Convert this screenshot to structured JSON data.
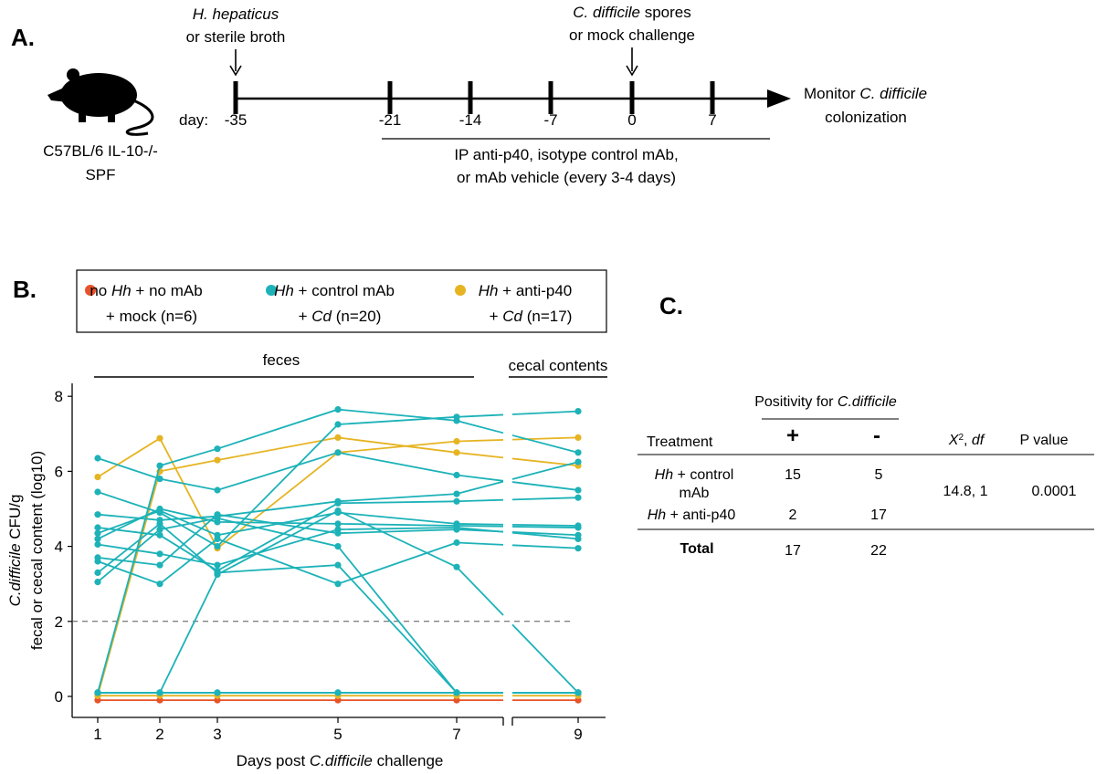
{
  "panel_a": {
    "label": "A.",
    "mouse": {
      "line1": "C57BL/6 IL-10-/-",
      "line2": "SPF"
    },
    "inoc": {
      "italic": "H. hepaticus",
      "line2": "or sterile broth"
    },
    "challenge": {
      "italic": "C. difficile",
      "rest": " spores",
      "line2": "or mock challenge"
    },
    "day_prefix": "day:",
    "days": [
      "-35",
      "-21",
      "-14",
      "-7",
      "0",
      "7"
    ],
    "monitor": {
      "pre": "Monitor ",
      "italic": "C. difficile",
      "line2": "colonization"
    },
    "treatment": {
      "line1": "IP anti-p40, isotype control mAb,",
      "line2": "or mAb vehicle (every 3-4 days)"
    }
  },
  "panel_b": {
    "label": "B.",
    "legend": [
      {
        "color": "#e8522a",
        "l1": [
          {
            "t": "no "
          },
          {
            "t": "Hh",
            "i": true
          },
          {
            "t": " + no mAb"
          }
        ],
        "l2": [
          {
            "t": "+ mock (n=6)"
          }
        ]
      },
      {
        "color": "#1cb2b8",
        "l1": [
          {
            "t": "Hh",
            "i": true
          },
          {
            "t": " + control mAb"
          }
        ],
        "l2": [
          {
            "t": "+ "
          },
          {
            "t": "Cd",
            "i": true
          },
          {
            "t": " (n=20)"
          }
        ]
      },
      {
        "color": "#e6b423",
        "l1": [
          {
            "t": "Hh",
            "i": true
          },
          {
            "t": " + anti-p40"
          }
        ],
        "l2": [
          {
            "t": "+ "
          },
          {
            "t": "Cd",
            "i": true
          },
          {
            "t": " (n=17)"
          }
        ]
      }
    ],
    "feces_label": "feces",
    "cecal_label": "cecal contents",
    "ylabel_line1": [
      {
        "t": "C.difficile",
        "i": true
      },
      {
        "t": " CFU/g"
      }
    ],
    "ylabel_line2": "fecal or cecal content (log10)",
    "xlabel": [
      {
        "t": "Days post "
      },
      {
        "t": "C.difficile",
        "i": true
      },
      {
        "t": " challenge"
      }
    ],
    "yticks": [
      "0",
      "2",
      "4",
      "6",
      "8"
    ],
    "xticks": [
      "1",
      "2",
      "3",
      "5",
      "7",
      "9"
    ]
  },
  "panel_c": {
    "label": "C.",
    "positivity": [
      {
        "t": "Positivity for "
      },
      {
        "t": "C.difficile",
        "i": true
      }
    ],
    "col_plus": "+",
    "col_minus": "-",
    "treatment_header": "Treatment",
    "chi_header": [
      {
        "t": "X",
        "i": true
      },
      {
        "t": "2",
        "sup": true
      },
      {
        "t": ", "
      },
      {
        "t": "df",
        "i": true
      }
    ],
    "p_header": "P value",
    "row1": {
      "name_l1": [
        {
          "t": "Hh",
          "i": true
        },
        {
          "t": " + control"
        }
      ],
      "name_l2": "mAb",
      "plus": "15",
      "minus": "5"
    },
    "row2": {
      "name": [
        {
          "t": "Hh",
          "i": true
        },
        {
          "t": " + anti-p40"
        }
      ],
      "plus": "2",
      "minus": "17"
    },
    "total": {
      "label": "Total",
      "plus": "17",
      "minus": "22"
    },
    "chi_value": "14.8, 1",
    "p_value": "0.0001"
  },
  "chart_data": {
    "type": "line",
    "x": [
      1,
      2,
      3,
      5,
      7,
      9
    ],
    "xlabel": "Days post C.difficile challenge",
    "ylabel": "C.difficile CFU/g fecal or cecal content (log10)",
    "ylim": [
      0,
      8
    ],
    "detection_limit": 2,
    "axis_break_between": [
      7,
      9
    ],
    "grid": false,
    "legend_position": "top",
    "series": [
      {
        "name": "no Hh + no mAb + mock (n=6)",
        "color": "#e8522a",
        "lines": [
          [
            -0.1,
            -0.1,
            -0.1,
            -0.1,
            -0.1,
            -0.1
          ]
        ]
      },
      {
        "name": "Hh + anti-p40 + Cd (n=17)",
        "color": "#e6b423",
        "lines": [
          [
            5.85,
            6.88,
            3.95,
            6.5,
            6.8,
            6.9
          ],
          [
            0.02,
            6.0,
            6.3,
            6.9,
            6.5,
            6.15
          ],
          [
            0.02,
            0.02,
            0.02,
            0.02,
            0.02,
            0.02
          ]
        ]
      },
      {
        "name": "Hh + control mAb + Cd (n=20)",
        "color": "#1cb2b8",
        "lines": [
          [
            6.35,
            5.8,
            5.5,
            6.5,
            5.9,
            5.5
          ],
          [
            0.1,
            6.15,
            6.6,
            7.65,
            7.35,
            6.5
          ],
          [
            5.45,
            4.9,
            4.0,
            7.25,
            7.45,
            7.6
          ],
          [
            4.85,
            4.7,
            4.8,
            5.2,
            5.4,
            6.25
          ],
          [
            4.5,
            4.3,
            3.35,
            5.15,
            5.2,
            5.3
          ],
          [
            4.35,
            4.95,
            4.3,
            4.9,
            4.6,
            4.55
          ],
          [
            4.2,
            5.0,
            4.65,
            4.6,
            4.55,
            4.5
          ],
          [
            4.05,
            3.8,
            3.5,
            4.45,
            4.5,
            4.2
          ],
          [
            3.7,
            3.5,
            4.85,
            4.35,
            4.45,
            4.3
          ],
          [
            3.6,
            3.0,
            4.2,
            3.0,
            4.1,
            3.95
          ],
          [
            3.3,
            4.6,
            3.3,
            3.5,
            0.1,
            0.1
          ],
          [
            3.05,
            4.45,
            4.75,
            4.0,
            0.1,
            0.1
          ],
          [
            0.1,
            0.1,
            3.25,
            4.95,
            3.45,
            0.1
          ],
          [
            0.1,
            0.1,
            0.1,
            0.1,
            0.1,
            0.1
          ],
          [
            0.1,
            0.1,
            0.1,
            0.1,
            0.1,
            0.1
          ]
        ]
      }
    ]
  }
}
